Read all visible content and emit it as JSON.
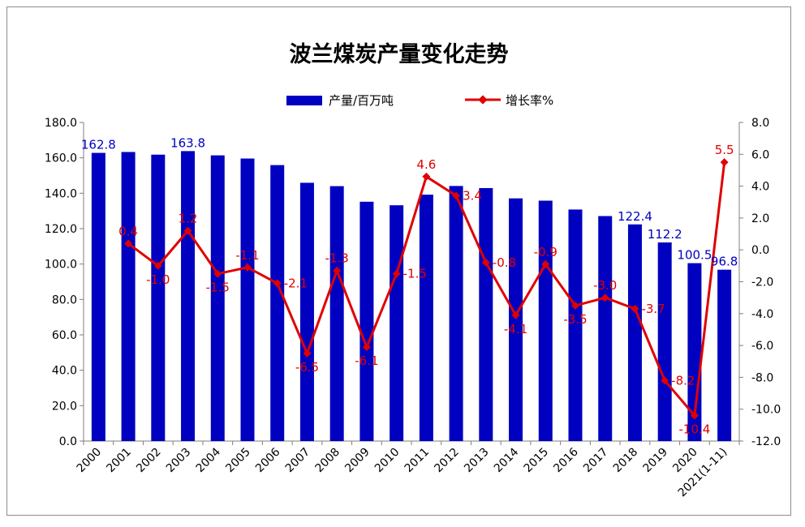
{
  "chart_data": {
    "type": "bar+line",
    "title": "波兰煤炭产量变化走势",
    "categories": [
      "2000",
      "2001",
      "2002",
      "2003",
      "2004",
      "2005",
      "2006",
      "2007",
      "2008",
      "2009",
      "2010",
      "2011",
      "2012",
      "2013",
      "2014",
      "2015",
      "2016",
      "2017",
      "2018",
      "2019",
      "2020",
      "2021(1-11)"
    ],
    "series": [
      {
        "name": "产量/百万吨",
        "kind": "bar",
        "axis": "left",
        "color": "#0000C0",
        "values": [
          162.8,
          163.3,
          161.8,
          163.8,
          161.4,
          159.6,
          155.9,
          145.9,
          144.0,
          135.2,
          133.2,
          139.2,
          144.1,
          142.9,
          137.1,
          135.8,
          130.8,
          127.1,
          122.4,
          112.2,
          100.5,
          96.8
        ],
        "data_labels": [
          "162.8",
          "",
          "",
          "163.8",
          "",
          "",
          "",
          "",
          "",
          "",
          "",
          "",
          "",
          "",
          "",
          "",
          "",
          "",
          "122.4",
          "112.2",
          "100.5",
          "96.8"
        ]
      },
      {
        "name": "增长率%",
        "kind": "line",
        "axis": "right",
        "color": "#E00000",
        "values": [
          null,
          0.4,
          -1.0,
          1.2,
          -1.5,
          -1.1,
          -2.1,
          -6.5,
          -1.3,
          -6.1,
          -1.5,
          4.6,
          3.4,
          -0.8,
          -4.1,
          -0.9,
          -3.5,
          -3.0,
          -3.7,
          -8.2,
          -10.4,
          5.5
        ],
        "data_labels": [
          "",
          "0.4",
          "-1.0",
          "1.2",
          "-1.5",
          "-1.1",
          "-2.1",
          "-6.5",
          "-1.3",
          "-6.1",
          "-1.5",
          "4.6",
          "3.4",
          "-0.8",
          "-4.1",
          "-0.9",
          "-3.5",
          "-3.0",
          "-3.7",
          "-8.2",
          "-10.4",
          "5.5"
        ]
      }
    ],
    "y_left": {
      "min": 0,
      "max": 180,
      "step": 20,
      "tick_labels": [
        "0.0",
        "20.0",
        "40.0",
        "60.0",
        "80.0",
        "100.0",
        "120.0",
        "140.0",
        "160.0",
        "180.0"
      ]
    },
    "y_right": {
      "min": -12,
      "max": 8,
      "step": 2,
      "tick_labels": [
        "-12.0",
        "-10.0",
        "-8.0",
        "-6.0",
        "-4.0",
        "-2.0",
        "0.0",
        "2.0",
        "4.0",
        "6.0",
        "8.0"
      ]
    },
    "grid": false,
    "legend_position": "top-center"
  }
}
